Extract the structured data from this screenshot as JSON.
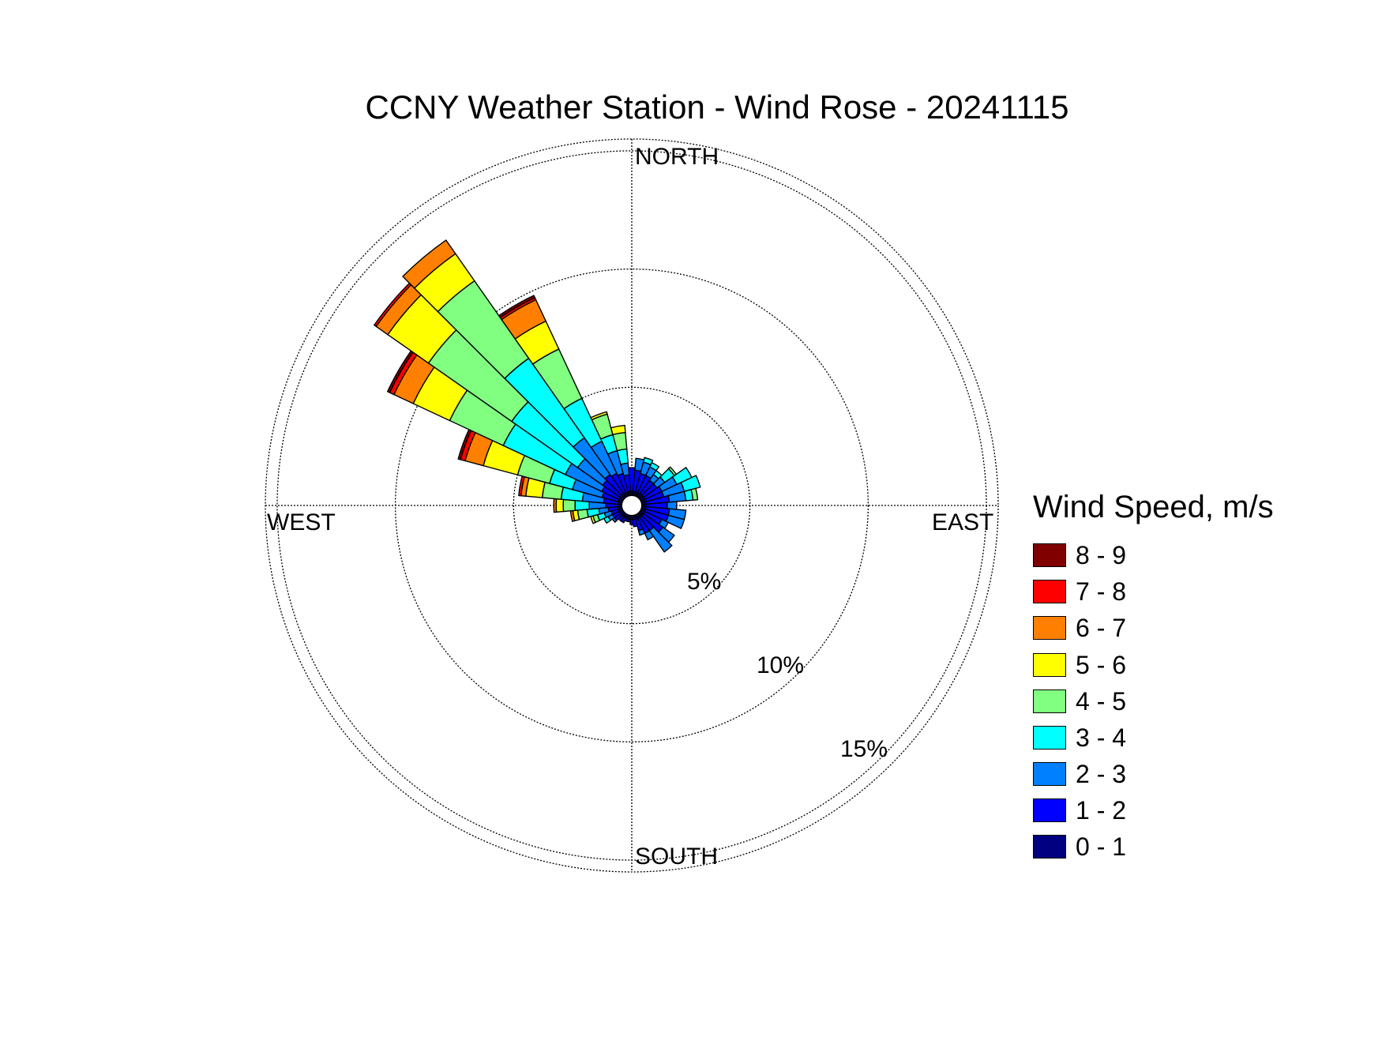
{
  "chart_data": {
    "type": "windrose",
    "title": "CCNY Weather Station - Wind Rose - 20241115",
    "directions": {
      "north": "NORTH",
      "east": "EAST",
      "south": "SOUTH",
      "west": "WEST"
    },
    "rings": [
      {
        "value": 5,
        "label": "5%"
      },
      {
        "value": 10,
        "label": "10%"
      },
      {
        "value": 15,
        "label": "15%"
      }
    ],
    "rlim": [
      0,
      15.5
    ],
    "legend": {
      "title": "Wind Speed, m/s",
      "position": "right",
      "bins": [
        {
          "label": "8 - 9",
          "color": "#800000"
        },
        {
          "label": "7 - 8",
          "color": "#ff0000"
        },
        {
          "label": "6 - 7",
          "color": "#ff8000"
        },
        {
          "label": "5 - 6",
          "color": "#ffff00"
        },
        {
          "label": "4 - 5",
          "color": "#80ff80"
        },
        {
          "label": "3 - 4",
          "color": "#00ffff"
        },
        {
          "label": "2 - 3",
          "color": "#0080ff"
        },
        {
          "label": "1 - 2",
          "color": "#0000ff"
        },
        {
          "label": "0 - 1",
          "color": "#000080"
        }
      ]
    },
    "bin_order_inner_to_outer": [
      "0 - 1",
      "1 - 2",
      "2 - 3",
      "3 - 4",
      "4 - 5",
      "5 - 6",
      "6 - 7",
      "7 - 8",
      "8 - 9"
    ],
    "sector_width_deg": 10,
    "units": "percent frequency (cumulative radius)",
    "sectors": [
      {
        "dir": 0,
        "cum": [
          0.6,
          1.6
        ]
      },
      {
        "dir": 10,
        "cum": [
          0.6,
          1.5,
          2.0
        ]
      },
      {
        "dir": 20,
        "cum": [
          0.6,
          1.4,
          1.9,
          2.1
        ]
      },
      {
        "dir": 30,
        "cum": [
          0.6,
          1.4,
          1.8,
          2.0
        ]
      },
      {
        "dir": 40,
        "cum": [
          0.6,
          1.3,
          1.6,
          1.8
        ]
      },
      {
        "dir": 50,
        "cum": [
          0.6,
          1.3,
          1.7,
          2.2,
          2.3
        ]
      },
      {
        "dir": 60,
        "cum": [
          0.6,
          1.4,
          2.1,
          2.8
        ]
      },
      {
        "dir": 70,
        "cum": [
          0.6,
          1.4,
          2.3,
          3.0
        ]
      },
      {
        "dir": 80,
        "cum": [
          0.6,
          1.6,
          2.3,
          2.6,
          2.8
        ]
      },
      {
        "dir": 90,
        "cum": [
          0.6,
          1.5,
          1.9
        ]
      },
      {
        "dir": 100,
        "cum": [
          0.6,
          1.6,
          2.3
        ]
      },
      {
        "dir": 110,
        "cum": [
          0.6,
          1.6,
          2.3
        ]
      },
      {
        "dir": 120,
        "cum": [
          0.6,
          1.4,
          1.7
        ]
      },
      {
        "dir": 130,
        "cum": [
          0.6,
          1.6,
          2.2
        ]
      },
      {
        "dir": 140,
        "cum": [
          0.6,
          1.3,
          2.4
        ]
      },
      {
        "dir": 150,
        "cum": [
          0.6,
          1.3,
          1.6
        ]
      },
      {
        "dir": 160,
        "cum": [
          0.6,
          1.1,
          1.3
        ]
      },
      {
        "dir": 170,
        "cum": [
          0.6,
          0.9
        ]
      },
      {
        "dir": 180,
        "cum": [
          0.6,
          0.8
        ]
      },
      {
        "dir": 190,
        "cum": [
          0.6,
          0.7
        ]
      },
      {
        "dir": 200,
        "cum": [
          0.6,
          0.7
        ]
      },
      {
        "dir": 210,
        "cum": [
          0.6,
          0.8
        ]
      },
      {
        "dir": 220,
        "cum": [
          0.6,
          0.8
        ]
      },
      {
        "dir": 230,
        "cum": [
          0.6,
          0.9,
          1.0
        ]
      },
      {
        "dir": 240,
        "cum": [
          0.6,
          0.9,
          1.1,
          1.3
        ]
      },
      {
        "dir": 250,
        "cum": [
          0.6,
          0.9,
          1.2,
          1.5,
          1.7,
          1.8
        ]
      },
      {
        "dir": 260,
        "cum": [
          0.6,
          1.0,
          1.4,
          1.9,
          2.3,
          2.5,
          2.6
        ]
      },
      {
        "dir": 270,
        "cum": [
          0.6,
          1.1,
          1.8,
          2.4,
          2.9,
          3.2,
          3.3
        ]
      },
      {
        "dir": 280,
        "cum": [
          0.6,
          1.2,
          2.1,
          3.0,
          3.8,
          4.5,
          4.7,
          4.8
        ]
      },
      {
        "dir": 290,
        "cum": [
          0.6,
          1.3,
          2.6,
          3.6,
          5.0,
          6.5,
          7.3,
          7.5,
          7.6
        ]
      },
      {
        "dir": 300,
        "cum": [
          0.6,
          1.4,
          3.1,
          6.0,
          8.5,
          10.2,
          11.1,
          11.3,
          11.4
        ]
      },
      {
        "dir": 310,
        "cum": [
          0.6,
          1.5,
          2.8,
          6.2,
          10.5,
          12.6,
          13.2,
          13.3
        ]
      },
      {
        "dir": 320,
        "cum": [
          0.6,
          1.6,
          3.5,
          7.6,
          11.6,
          13.0,
          13.7
        ]
      },
      {
        "dir": 330,
        "cum": [
          0.6,
          1.5,
          3.0,
          5.0,
          7.3,
          8.6,
          9.6,
          9.7,
          9.8
        ]
      },
      {
        "dir": 340,
        "cum": [
          0.6,
          1.4,
          2.4,
          3.1,
          4.0,
          4.1
        ]
      },
      {
        "dir": 350,
        "cum": [
          0.6,
          1.3,
          1.8,
          2.4,
          3.1,
          3.4
        ]
      }
    ]
  }
}
